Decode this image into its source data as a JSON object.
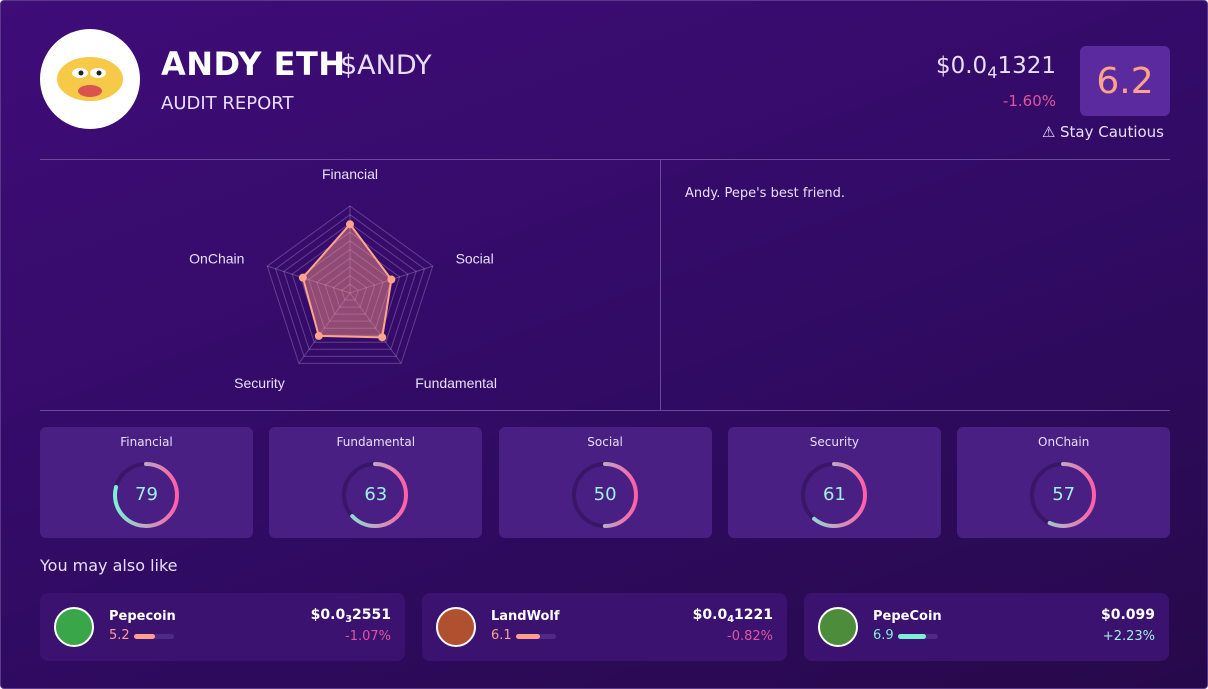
{
  "header": {
    "name": "ANDY ETH",
    "ticker": "$ANDY",
    "subtitle": "AUDIT REPORT",
    "price": {
      "lead": "$0.0",
      "zeros": "4",
      "digits": "1321"
    },
    "change": "-1.60%",
    "score": 6.2,
    "verdict": "⚠ Stay Cautious"
  },
  "description": "Andy. Pepe's best friend.",
  "radar": {
    "axes": [
      "Financial",
      "Social",
      "Fundamental",
      "Security",
      "OnChain"
    ],
    "values": [
      79,
      50,
      63,
      61,
      57
    ],
    "rlim": [
      0,
      100
    ],
    "color": "#ffa38a"
  },
  "scores": [
    {
      "label": "Financial",
      "value": 79
    },
    {
      "label": "Fundamental",
      "value": 63
    },
    {
      "label": "Social",
      "value": 50
    },
    {
      "label": "Security",
      "value": 61
    },
    {
      "label": "OnChain",
      "value": 57
    }
  ],
  "also_like": {
    "title": "You may also like",
    "items": [
      {
        "name": "Pepecoin",
        "score": 5.2,
        "price": {
          "lead": "$0.0",
          "zeros": "3",
          "digits": "2551"
        },
        "change": "-1.07%",
        "color": "#ff9f8f"
      },
      {
        "name": "LandWolf",
        "score": 6.1,
        "price": {
          "lead": "$0.0",
          "zeros": "4",
          "digits": "1221"
        },
        "change": "-0.82%",
        "color": "#ff9f8f"
      },
      {
        "name": "PepeCoin",
        "score": 6.9,
        "price": {
          "lead": "$0.099"
        },
        "change": "+2.23%",
        "color": "#7ef0d8"
      }
    ]
  }
}
